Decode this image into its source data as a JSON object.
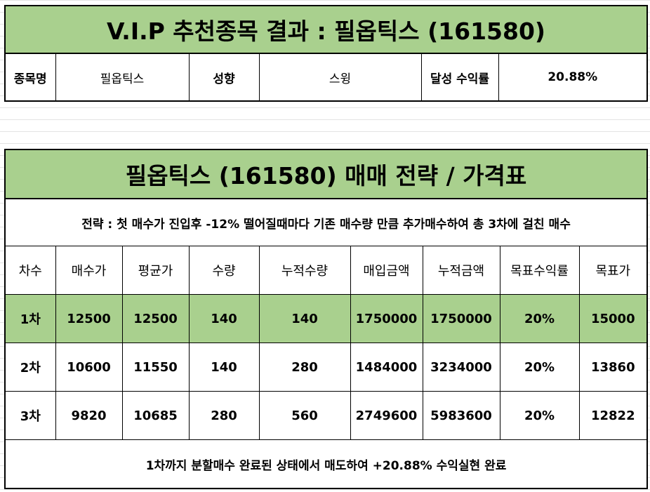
{
  "summary": {
    "title": "V.I.P 추천종목 결과 : 필옵틱스 (161580)",
    "labels": {
      "stock_name": "종목명",
      "style": "성향",
      "achieved_return": "달성 수익률"
    },
    "values": {
      "stock_name": "필옵틱스",
      "style": "스윙",
      "achieved_return": "20.88%"
    }
  },
  "strategy": {
    "title": "필옵틱스 (161580) 매매 전략 / 가격표",
    "description": "전략 : 첫 매수가 진입후 -12% 떨어질때마다 기존 매수량 만큼 추가매수하여 총 3차에 걸친 매수",
    "headers": [
      "차수",
      "매수가",
      "평균가",
      "수량",
      "누적수량",
      "매입금액",
      "누적금액",
      "목표수익률",
      "목표가"
    ],
    "rows": [
      [
        "1차",
        "12500",
        "12500",
        "140",
        "140",
        "1750000",
        "1750000",
        "20%",
        "15000"
      ],
      [
        "2차",
        "10600",
        "11550",
        "140",
        "280",
        "1484000",
        "3234000",
        "20%",
        "13860"
      ],
      [
        "3차",
        "9820",
        "10685",
        "280",
        "560",
        "2749600",
        "5983600",
        "20%",
        "12822"
      ]
    ],
    "footer": "1차까지 분할매수 완료된 상태에서 매도하여 +20.88% 수익실현 완료"
  },
  "colors": {
    "highlight_green": "#a9d08e",
    "border": "#000000",
    "gridline": "#e3e3e3"
  }
}
